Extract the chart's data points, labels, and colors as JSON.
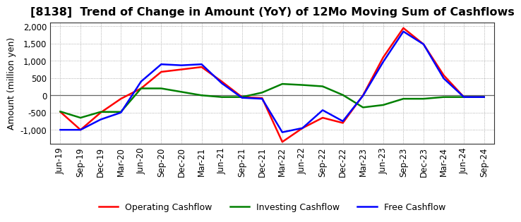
{
  "title": "[8138]  Trend of Change in Amount (YoY) of 12Mo Moving Sum of Cashflows",
  "ylabel": "Amount (million yen)",
  "x_labels": [
    "Jun-19",
    "Sep-19",
    "Dec-19",
    "Mar-20",
    "Jun-20",
    "Sep-20",
    "Dec-20",
    "Mar-21",
    "Jun-21",
    "Sep-21",
    "Dec-21",
    "Mar-22",
    "Jun-22",
    "Sep-22",
    "Dec-22",
    "Mar-23",
    "Jun-23",
    "Sep-23",
    "Dec-23",
    "Mar-24",
    "Jun-24",
    "Sep-24"
  ],
  "operating": [
    -480,
    -1000,
    -500,
    -100,
    200,
    680,
    750,
    820,
    400,
    -50,
    -80,
    -1350,
    -950,
    -650,
    -800,
    0,
    1100,
    1950,
    1480,
    580,
    -50,
    -50
  ],
  "investing": [
    -470,
    -650,
    -480,
    -480,
    200,
    200,
    100,
    0,
    -50,
    -50,
    80,
    330,
    300,
    260,
    10,
    -350,
    -280,
    -100,
    -100,
    -50,
    -50,
    -50
  ],
  "free": [
    -1000,
    -1000,
    -700,
    -500,
    400,
    900,
    870,
    900,
    350,
    -70,
    -100,
    -1070,
    -950,
    -430,
    -750,
    -10,
    970,
    1850,
    1480,
    490,
    -50,
    -50
  ],
  "ylim": [
    -1400,
    2100
  ],
  "yticks": [
    -1000,
    -500,
    0,
    500,
    1000,
    1500,
    2000
  ],
  "colors": {
    "operating": "#ff0000",
    "investing": "#008000",
    "free": "#0000ff"
  },
  "line_width": 1.8,
  "bg_color": "#ffffff",
  "grid_color": "#999999",
  "title_fontsize": 11.5,
  "axis_label_fontsize": 9,
  "tick_fontsize": 8.5
}
